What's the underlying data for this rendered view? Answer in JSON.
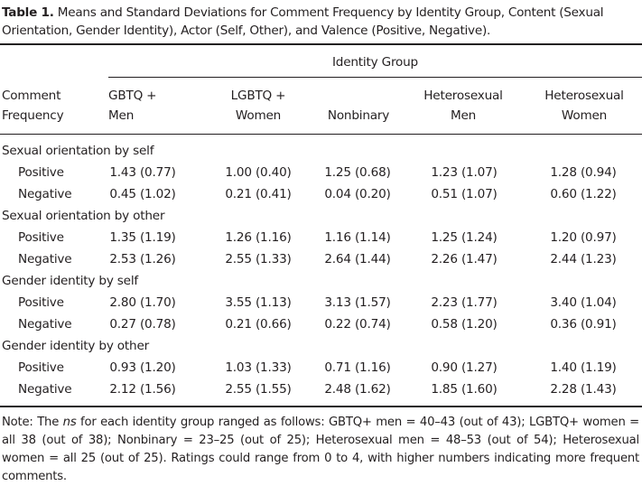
{
  "caption": {
    "label": "Table 1.",
    "text": "Means and Standard Deviations for Comment Frequency by Identity Group, Content (Sexual Orientation, Gender Identity), Actor (Self, Other), and Valence (Positive, Negative)."
  },
  "header": {
    "group_title": "Identity Group",
    "comment_frequency": [
      "Comment",
      "Frequency"
    ],
    "columns": [
      [
        "GBTQ +",
        "Men"
      ],
      [
        "LGBTQ +",
        "Women"
      ],
      [
        "",
        "Nonbinary"
      ],
      [
        "Heterosexual",
        "Men"
      ],
      [
        "Heterosexual",
        "Women"
      ]
    ]
  },
  "sections": [
    {
      "title": "Sexual orientation by self",
      "rows": [
        {
          "label": "Positive",
          "values": [
            "1.43 (0.77)",
            "1.00 (0.40)",
            "1.25 (0.68)",
            "1.23 (1.07)",
            "1.28 (0.94)"
          ]
        },
        {
          "label": "Negative",
          "values": [
            "0.45 (1.02)",
            "0.21 (0.41)",
            "0.04 (0.20)",
            "0.51 (1.07)",
            "0.60 (1.22)"
          ]
        }
      ]
    },
    {
      "title": "Sexual orientation by other",
      "rows": [
        {
          "label": "Positive",
          "values": [
            "1.35 (1.19)",
            "1.26 (1.16)",
            "1.16 (1.14)",
            "1.25 (1.24)",
            "1.20 (0.97)"
          ]
        },
        {
          "label": "Negative",
          "values": [
            "2.53 (1.26)",
            "2.55 (1.33)",
            "2.64 (1.44)",
            "2.26 (1.47)",
            "2.44 (1.23)"
          ]
        }
      ]
    },
    {
      "title": "Gender identity by self",
      "rows": [
        {
          "label": "Positive",
          "values": [
            "2.80 (1.70)",
            "3.55 (1.13)",
            "3.13 (1.57)",
            "2.23 (1.77)",
            "3.40 (1.04)"
          ]
        },
        {
          "label": "Negative",
          "values": [
            "0.27 (0.78)",
            "0.21 (0.66)",
            "0.22 (0.74)",
            "0.58 (1.20)",
            "0.36 (0.91)"
          ]
        }
      ]
    },
    {
      "title": "Gender identity by other",
      "rows": [
        {
          "label": "Positive",
          "values": [
            "0.93 (1.20)",
            "1.03 (1.33)",
            "0.71 (1.16)",
            "0.90 (1.27)",
            "1.40 (1.19)"
          ]
        },
        {
          "label": "Negative",
          "values": [
            "2.12 (1.56)",
            "2.55 (1.55)",
            "2.48 (1.62)",
            "1.85 (1.60)",
            "2.28 (1.43)"
          ]
        }
      ]
    }
  ],
  "note": {
    "prefix": "Note: The ",
    "italic": "ns",
    "text": " for each identity group ranged as follows: GBTQ+ men = 40–43 (out of 43); LGBTQ+ women = all 38 (out of 38); Nonbinary = 23–25 (out of 25); Heterosexual men = 48–53 (out of 54); Heterosexual women = all 25 (out of 25). Ratings could range from 0 to 4, with higher numbers indicating more frequent comments."
  }
}
